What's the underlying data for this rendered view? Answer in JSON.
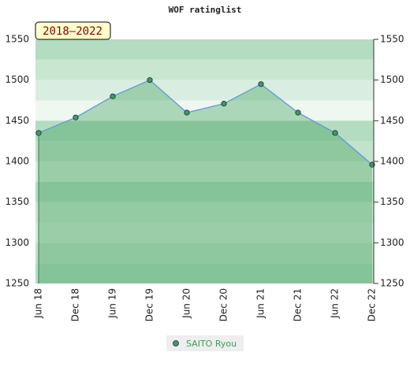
{
  "chart_data": {
    "type": "area-line",
    "title": "WOF ratinglist",
    "annotation": "2018–2022",
    "categories": [
      "Jun 18",
      "Dec 18",
      "Jun 19",
      "Dec 19",
      "Jun 20",
      "Dec 20",
      "Jun 21",
      "Dec 21",
      "Jun 22",
      "Dec 22"
    ],
    "series": [
      {
        "name": "SAITO Ryou",
        "color": "#3d9c5c",
        "line_color": "#5b9bd5",
        "values": [
          1435,
          1454,
          1480,
          1500,
          1460,
          1471,
          1495,
          1460,
          1435,
          1396
        ]
      }
    ],
    "ylim": [
      1250,
      1550
    ],
    "yticks": [
      1250,
      1300,
      1350,
      1400,
      1450,
      1500,
      1550
    ],
    "grid": true
  }
}
